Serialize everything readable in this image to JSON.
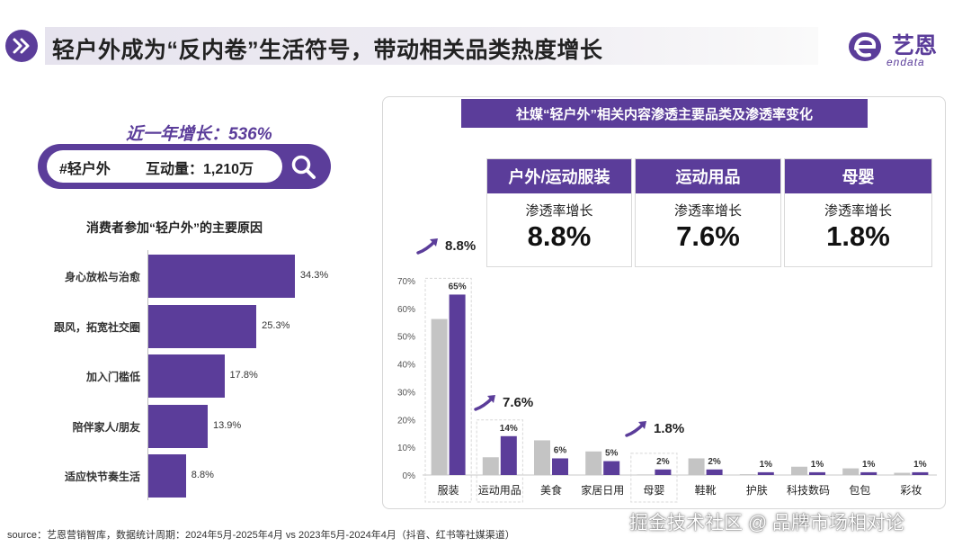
{
  "header": {
    "title": "轻户外成为“反内卷”生活符号，带动相关品类热度增长",
    "icon": "double-chevron-right-icon"
  },
  "logo": {
    "name": "艺恩",
    "sub": "endata",
    "color": "#5b3d9a"
  },
  "left": {
    "growth": "近一年增长：536%",
    "search": {
      "tag": "#轻户外",
      "metric": "互动量：1,210万",
      "icon": "search-icon"
    },
    "reasons_title": "消费者参加“轻户外”的主要原因"
  },
  "right": {
    "title": "社媒“轻户外”相关内容渗透主要品类及渗透率变化",
    "cards": [
      {
        "name": "户外/运动服装",
        "label": "渗透率增长",
        "value": "8.8%"
      },
      {
        "name": "运动用品",
        "label": "渗透率增长",
        "value": "7.6%"
      },
      {
        "name": "母婴",
        "label": "渗透率增长",
        "value": "1.8%"
      }
    ],
    "badges": [
      "8.8%",
      "7.6%",
      "1.8%"
    ]
  },
  "colors": {
    "accent": "#5b3d9a",
    "gray": "#c4c4c4"
  },
  "chart_data": [
    {
      "type": "bar",
      "orientation": "horizontal",
      "title": "消费者参加“轻户外”的主要原因",
      "categories": [
        "身心放松与治愈",
        "跟风，拓宽社交圈",
        "加入门槛低",
        "陪伴家人/朋友",
        "适应快节奏生活"
      ],
      "values": [
        34.3,
        25.3,
        17.8,
        13.9,
        8.8
      ],
      "value_labels": [
        "34.3%",
        "25.3%",
        "17.8%",
        "13.9%",
        "8.8%"
      ],
      "xlim": [
        0,
        40
      ]
    },
    {
      "type": "bar",
      "title": "社媒“轻户外”相关内容渗透主要品类及渗透率变化",
      "categories": [
        "服装",
        "运动用品",
        "美食",
        "家居日用",
        "母婴",
        "鞋靴",
        "护肤",
        "科技数码",
        "包包",
        "彩妆"
      ],
      "series": [
        {
          "values": [
            56.2,
            6.4,
            12.5,
            8.5,
            0.2,
            6.0,
            0.3,
            3.0,
            2.4,
            0.8
          ]
        },
        {
          "values": [
            65,
            14,
            6,
            5,
            2,
            2,
            1,
            1,
            1,
            1
          ]
        }
      ],
      "value_labels": [
        "65%",
        "14%",
        "6%",
        "5%",
        "2%",
        "2%",
        "1%",
        "1%",
        "1%",
        "1%"
      ],
      "yticks": [
        "0%",
        "10%",
        "20%",
        "30%",
        "40%",
        "50%",
        "60%",
        "70%"
      ],
      "ylim": [
        0,
        70
      ]
    }
  ],
  "source": "source：艺恩营销智库，数据统计周期：2024年5月-2025年4月 vs 2023年5月-2024年4月（抖音、红书等社媒渠道）",
  "watermark": "掘金技术社区 @ 品牌市场相对论"
}
